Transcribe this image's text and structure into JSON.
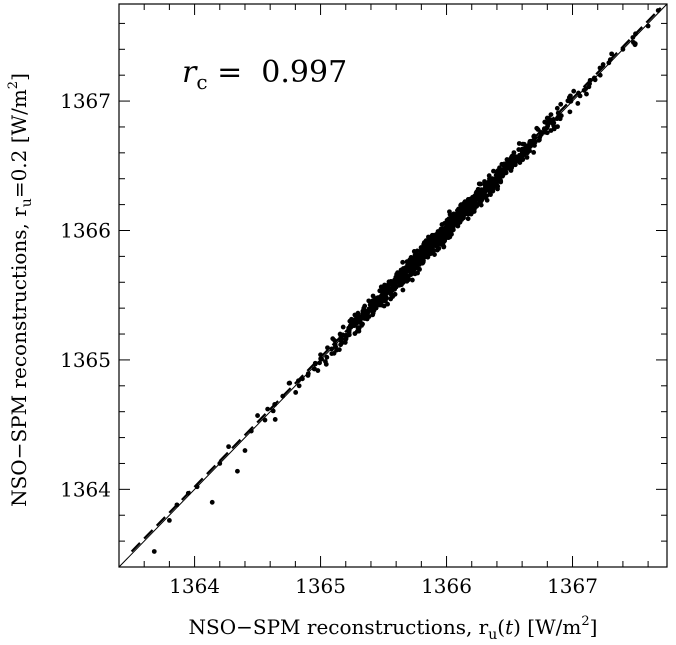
{
  "chart_data": {
    "type": "scatter",
    "title": "",
    "xlabel": "NSO−SPM reconstructions, r_u(t) [W/m²]",
    "xlabel_parts": {
      "prefix": "NSO−SPM reconstructions, r",
      "sub": "u",
      "mid_open": "(",
      "var": "t",
      "mid_close": ")",
      "unit_prefix": " [W/m",
      "sup": "2",
      "unit_suffix": "]"
    },
    "ylabel": "NSO−SPM reconstructions, r_u=0.2 [W/m²]",
    "ylabel_parts": {
      "prefix": "NSO−SPM reconstructions, r",
      "sub": "u",
      "rest": "=0.2 [W/m",
      "sup": "2",
      "unit_suffix": "]"
    },
    "annotation": {
      "symbol": "r",
      "sub": "c",
      "text": " =  0.997"
    },
    "xlim": [
      1363.4,
      1367.75
    ],
    "ylim": [
      1363.4,
      1367.75
    ],
    "major_ticks": [
      1364,
      1365,
      1366,
      1367
    ],
    "major_tick_labels": [
      "1364",
      "1365",
      "1366",
      "1367"
    ],
    "minor_tick_step": 0.2,
    "grid": false,
    "reference_line": {
      "style": "solid",
      "x": [
        1363.4,
        1367.75
      ],
      "y": [
        1363.4,
        1367.75
      ]
    },
    "fit_line": {
      "style": "dashed",
      "x": [
        1363.5,
        1367.7
      ],
      "y": [
        1363.52,
        1367.72
      ]
    },
    "point_generation": {
      "n": 950,
      "x_mean": 1366.0,
      "x_std": 0.48,
      "x_min": 1363.7,
      "x_max": 1367.7,
      "slope": 1.0,
      "offset": 0.0,
      "y_noise": 0.04,
      "seed": 7
    },
    "x": [
      1363.68,
      1363.8,
      1363.86,
      1363.95,
      1364.02,
      1364.14,
      1364.2,
      1364.27,
      1364.34,
      1364.4,
      1364.45,
      1364.5,
      1364.58,
      1364.64,
      1364.7,
      1364.75,
      1364.83,
      1364.9,
      1364.95,
      1365.0,
      1365.05,
      1365.12,
      1365.2,
      1365.28,
      1365.35,
      1365.42,
      1365.5,
      1365.58,
      1365.65,
      1365.72,
      1365.8,
      1365.88,
      1365.95,
      1366.02,
      1366.1,
      1366.18,
      1366.26,
      1366.34,
      1366.42,
      1366.5,
      1366.58,
      1366.66,
      1366.74,
      1366.82,
      1366.9,
      1366.98,
      1367.06,
      1367.14,
      1367.22,
      1367.3,
      1367.4,
      1367.5,
      1367.6,
      1367.68
    ],
    "y": [
      1363.52,
      1363.76,
      1363.88,
      1363.97,
      1364.02,
      1363.9,
      1364.2,
      1364.33,
      1364.14,
      1364.3,
      1364.45,
      1364.57,
      1364.62,
      1364.54,
      1364.72,
      1364.82,
      1364.8,
      1364.88,
      1364.93,
      1365.04,
      1365.02,
      1365.1,
      1365.16,
      1365.3,
      1365.32,
      1365.45,
      1365.48,
      1365.6,
      1365.62,
      1365.74,
      1365.78,
      1365.9,
      1365.92,
      1366.06,
      1366.08,
      1366.2,
      1366.24,
      1366.36,
      1366.4,
      1366.52,
      1366.56,
      1366.68,
      1366.72,
      1366.84,
      1366.88,
      1367.0,
      1367.04,
      1367.16,
      1367.2,
      1367.32,
      1367.4,
      1367.52,
      1367.58,
      1367.7
    ]
  }
}
